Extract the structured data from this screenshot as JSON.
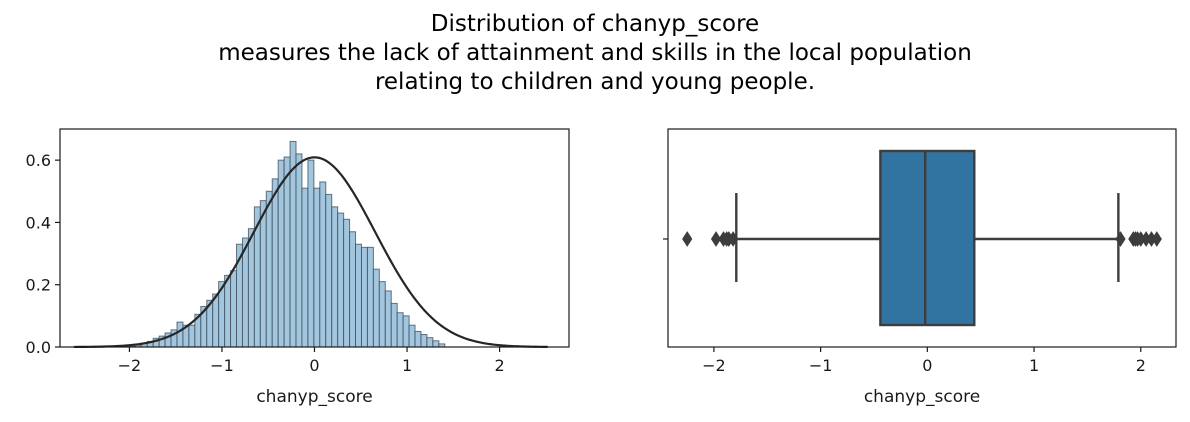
{
  "figure": {
    "title_lines": [
      "Distribution of chanyp_score",
      "measures the lack of attainment and skills in the local population",
      "relating to children and young people."
    ]
  },
  "colors": {
    "hist_fill": "#a3c6df",
    "hist_edge": "#3a4a57",
    "kde_line": "#262626",
    "box_fill": "#3274a1",
    "box_edge": "#3d3d3d",
    "axes": "#1a1a1a"
  },
  "chart_data": [
    {
      "type": "histogram",
      "xlabel": "chanyp_score",
      "ylabel": "",
      "xlim": [
        -2.75,
        2.75
      ],
      "ylim": [
        0,
        0.7
      ],
      "xticks": [
        -2,
        -1,
        0,
        1,
        2
      ],
      "xtick_labels": [
        "−2",
        "−1",
        "0",
        "1",
        "2"
      ],
      "yticks": [
        0,
        0.2,
        0.4,
        0.6
      ],
      "ytick_labels": [
        "0.0",
        "0.2",
        "0.4",
        "0.6"
      ],
      "bins": {
        "start": -2.0,
        "width": 0.0643
      },
      "densities": [
        0.003,
        0.006,
        0.012,
        0.018,
        0.028,
        0.035,
        0.045,
        0.055,
        0.08,
        0.07,
        0.07,
        0.105,
        0.13,
        0.15,
        0.17,
        0.21,
        0.23,
        0.245,
        0.33,
        0.35,
        0.38,
        0.45,
        0.47,
        0.5,
        0.54,
        0.6,
        0.61,
        0.66,
        0.62,
        0.51,
        0.6,
        0.51,
        0.53,
        0.49,
        0.45,
        0.43,
        0.41,
        0.37,
        0.33,
        0.32,
        0.32,
        0.25,
        0.21,
        0.18,
        0.14,
        0.11,
        0.1,
        0.07,
        0.05,
        0.04,
        0.03,
        0.02,
        0.01
      ],
      "kde": {
        "type": "normal_fit",
        "mean": 0.0,
        "std": 0.655,
        "x_range": [
          -2.6,
          2.52
        ]
      }
    },
    {
      "type": "box",
      "xlabel": "chanyp_score",
      "xlim": [
        -2.43,
        2.33
      ],
      "xticks": [
        -2,
        -1,
        0,
        1,
        2
      ],
      "xtick_labels": [
        "−2",
        "−1",
        "0",
        "1",
        "2"
      ],
      "q1": -0.44,
      "median": -0.02,
      "q3": 0.44,
      "whisker_low": -1.79,
      "whisker_high": 1.79,
      "outliers": [
        -2.25,
        -1.98,
        -1.91,
        -1.88,
        -1.86,
        -1.82,
        1.81,
        1.93,
        1.95,
        1.97,
        2.0,
        2.05,
        2.1,
        2.15
      ]
    }
  ]
}
